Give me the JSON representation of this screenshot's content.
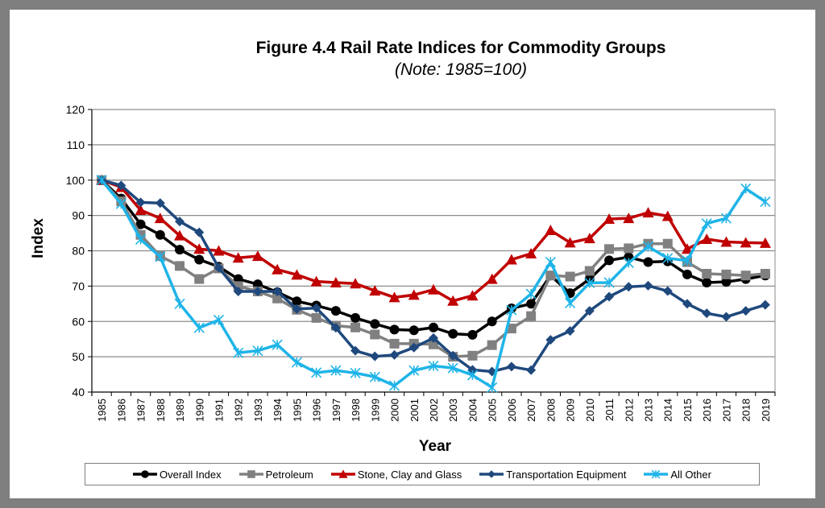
{
  "chart_data": {
    "type": "line",
    "title": "Figure 4.4 Rail Rate Indices for Commodity Groups",
    "subtitle": "(Note:  1985=100)",
    "xlabel": "Year",
    "ylabel": "Index",
    "ylim": [
      40,
      120
    ],
    "yticks": [
      40,
      50,
      60,
      70,
      80,
      90,
      100,
      110,
      120
    ],
    "grid": true,
    "legend_position": "bottom",
    "x": [
      "1985",
      "1986",
      "1987",
      "1988",
      "1989",
      "1990",
      "1991",
      "1992",
      "1993",
      "1994",
      "1995",
      "1996",
      "1997",
      "1998",
      "1999",
      "2000",
      "2001",
      "2002",
      "2003",
      "2004",
      "2005",
      "2006",
      "2007",
      "2008",
      "2009",
      "2010",
      "2011",
      "2012",
      "2013",
      "2014",
      "2015",
      "2016",
      "2017",
      "2018",
      "2019"
    ],
    "series": [
      {
        "name": "Overall Index",
        "color": "#000000",
        "marker": "circle",
        "values": [
          100,
          94.8,
          87.5,
          84.5,
          80.3,
          77.5,
          75.5,
          72,
          70.5,
          68.3,
          65.7,
          64.5,
          63,
          61,
          59.3,
          57.7,
          57.5,
          58.3,
          56.5,
          56.2,
          60,
          63.7,
          65,
          73,
          68,
          72,
          77.3,
          78.2,
          76.8,
          77,
          73.3,
          71,
          71.2,
          72,
          73
        ]
      },
      {
        "name": "Petroleum",
        "color": "#808080",
        "marker": "square",
        "values": [
          100,
          94,
          84.5,
          78.5,
          75.7,
          72,
          75,
          70,
          68.5,
          66.5,
          63.3,
          61,
          58.8,
          58.3,
          56.3,
          53.7,
          53.7,
          53.5,
          50,
          50.3,
          53.3,
          58,
          61.5,
          73,
          72.7,
          74.3,
          80.5,
          80.7,
          82,
          82,
          76.8,
          73.5,
          73.3,
          73,
          73.5
        ]
      },
      {
        "name": "Stone, Clay and Glass",
        "color": "#c00000",
        "marker": "triangle",
        "values": [
          100,
          98,
          91.5,
          89.2,
          84.3,
          80.5,
          80,
          78,
          78.5,
          74.7,
          73.2,
          71.3,
          71,
          70.7,
          68.7,
          66.8,
          67.5,
          69,
          65.8,
          67.3,
          72,
          77.5,
          79.2,
          85.8,
          82.3,
          83.5,
          89,
          89.2,
          90.8,
          89.8,
          80.5,
          83.3,
          82.5,
          82.3,
          82.2
        ]
      },
      {
        "name": "Transportation Equipment",
        "color": "#1f497d",
        "marker": "diamond",
        "values": [
          100,
          98.5,
          93.7,
          93.5,
          88.3,
          85.2,
          75.2,
          68.5,
          68.5,
          68.5,
          63.5,
          63.8,
          58.2,
          51.7,
          50.1,
          50.5,
          52.6,
          55.3,
          50.3,
          46.3,
          45.8,
          47.2,
          46.2,
          54.8,
          57.3,
          63,
          67,
          69.8,
          70.1,
          68.6,
          65,
          62.3,
          61.3,
          63,
          64.7
        ]
      },
      {
        "name": "All Other",
        "color": "#1fb4e8",
        "marker": "star",
        "values": [
          100,
          93.3,
          83.2,
          78.3,
          65,
          58.2,
          60.4,
          51.1,
          51.7,
          53.4,
          48.4,
          45.5,
          46.1,
          45.4,
          44.3,
          41.8,
          46.1,
          47.4,
          46.8,
          44.8,
          41.3,
          63.2,
          67.8,
          76.8,
          65.2,
          70.9,
          71,
          76.6,
          81.2,
          77.9,
          77.2,
          87.7,
          89.2,
          97.6,
          93.9
        ]
      }
    ]
  }
}
